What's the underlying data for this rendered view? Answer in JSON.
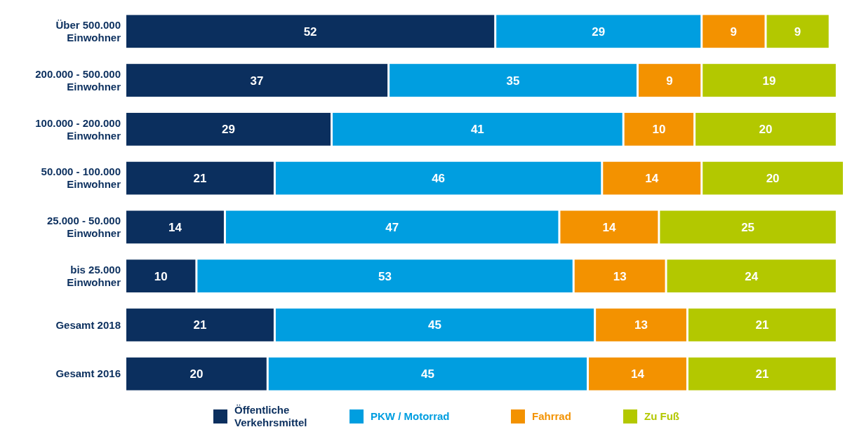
{
  "chart_data": {
    "type": "bar",
    "orientation": "horizontal",
    "stacked": true,
    "data_labels": true,
    "legend": "bottom",
    "categories": [
      "Über 500.000 Einwohner",
      "200.000 - 500.000 Einwohner",
      "100.000 - 200.000 Einwohner",
      "50.000 - 100.000 Einwohner",
      "25.000 - 50.000 Einwohner",
      "bis 25.000 Einwohner",
      "Gesamt 2018",
      "Gesamt 2016"
    ],
    "series": [
      {
        "name": "Öffentliche Verkehrsmittel",
        "color": "#0b2f5e",
        "values": [
          52,
          37,
          29,
          21,
          14,
          10,
          21,
          20
        ]
      },
      {
        "name": "PKW / Motorrad",
        "color": "#009ee0",
        "values": [
          29,
          35,
          41,
          46,
          47,
          53,
          45,
          45
        ]
      },
      {
        "name": "Fahrrad",
        "color": "#f39200",
        "values": [
          9,
          9,
          10,
          14,
          14,
          13,
          13,
          14
        ]
      },
      {
        "name": "Zu Fuß",
        "color": "#b3c800",
        "values": [
          9,
          19,
          20,
          20,
          25,
          24,
          21,
          21
        ]
      }
    ]
  }
}
